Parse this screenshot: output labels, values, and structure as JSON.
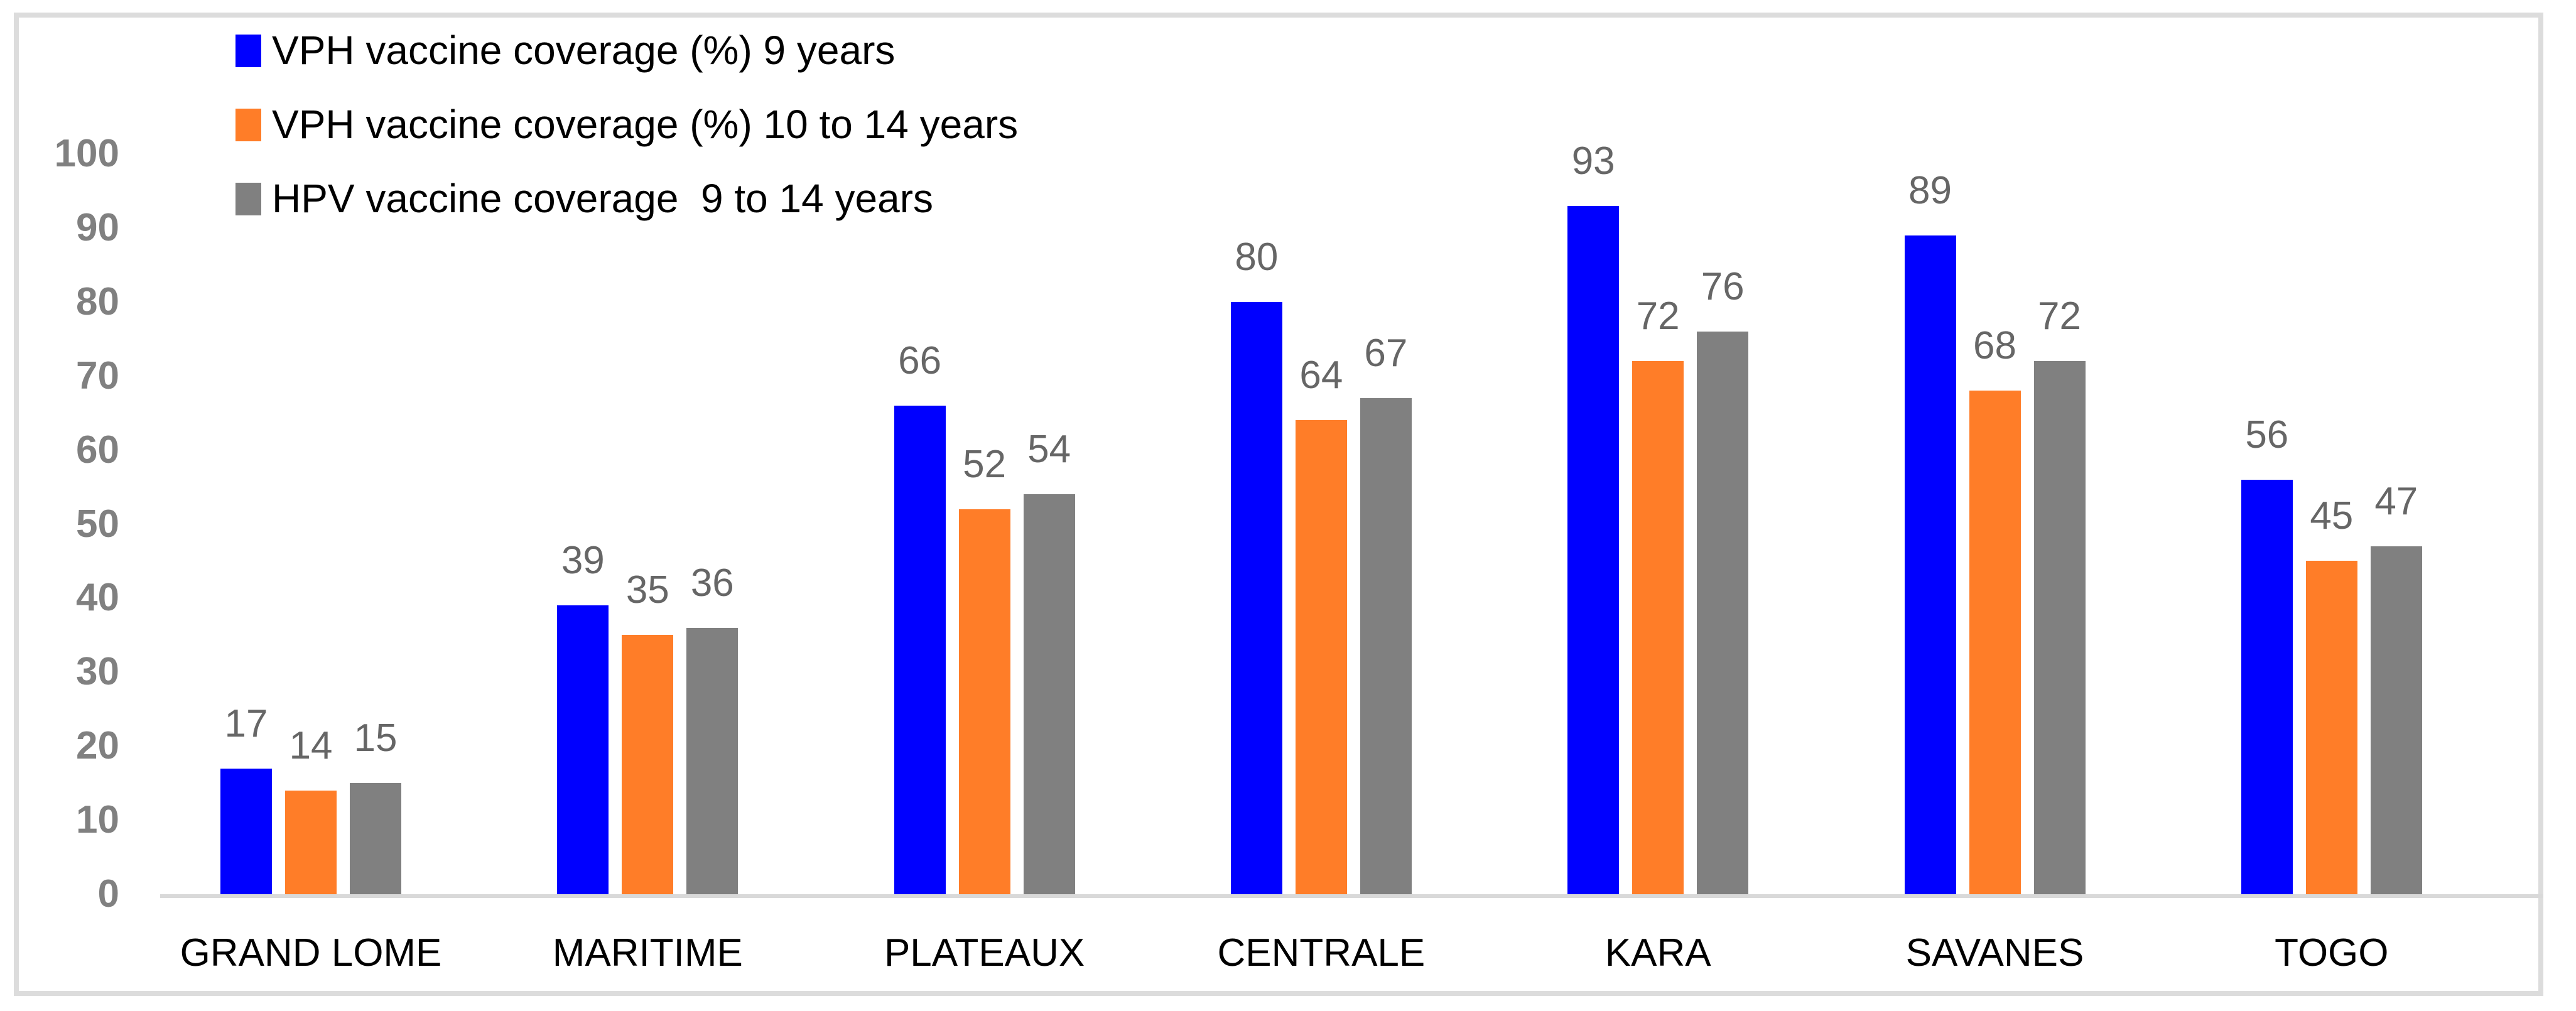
{
  "chart_data": {
    "type": "bar",
    "categories": [
      "GRAND LOME",
      "MARITIME",
      "PLATEAUX",
      "CENTRALE",
      "KARA",
      "SAVANES",
      "TOGO"
    ],
    "series": [
      {
        "name": "VPH vaccine coverage (%) 9 years",
        "color": "#0000FF",
        "values": [
          17,
          39,
          66,
          80,
          93,
          89,
          56
        ]
      },
      {
        "name": "VPH vaccine coverage (%) 10 to 14 years",
        "color": "#FF7D28",
        "values": [
          14,
          35,
          52,
          64,
          72,
          68,
          45
        ]
      },
      {
        "name": "HPV vaccine coverage  9 to 14 years",
        "color": "#808080",
        "values": [
          15,
          36,
          54,
          67,
          76,
          72,
          47
        ]
      }
    ],
    "ylim": [
      0,
      100
    ],
    "yticks": [
      0,
      10,
      20,
      30,
      40,
      50,
      60,
      70,
      80,
      90,
      100
    ],
    "grid": false,
    "legend_position": "top-left",
    "data_labels": true
  },
  "colors": {
    "background": "#FFFFFF",
    "frame_border": "#DCDCDC",
    "axis_line": "#D9D9D9",
    "tick_label": "#808080",
    "data_label": "#666666",
    "category_label": "#000000",
    "legend_text": "#000000"
  }
}
